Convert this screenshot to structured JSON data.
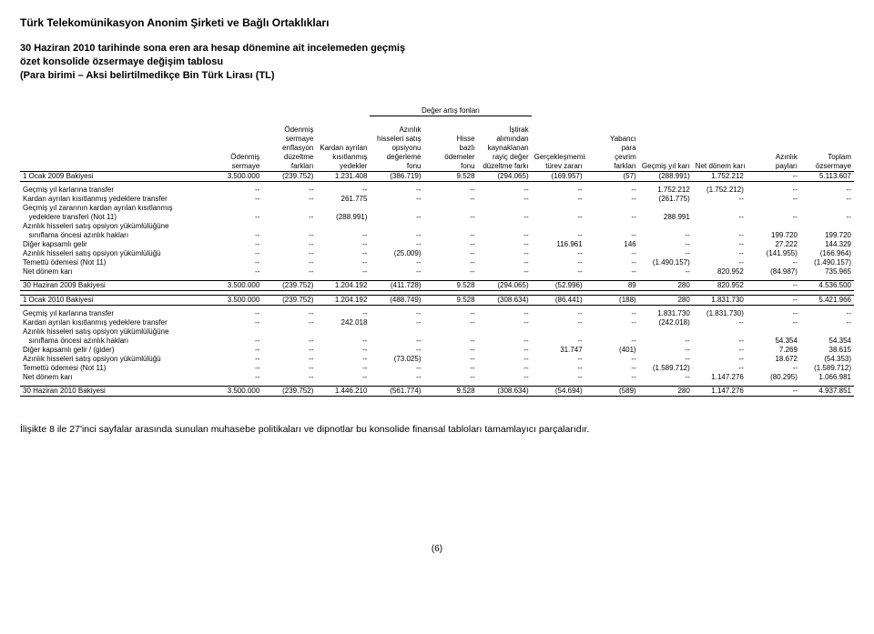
{
  "header": {
    "company": "Türk Telekomünikasyon Anonim Şirketi ve Bağlı Ortaklıkları",
    "line1": "30 Haziran 2010 tarihinde sona eren ara hesap dönemine ait incelemeden geçmiş",
    "line2": "özet konsolide özsermaye değişim tablosu",
    "line3": "(Para birimi – Aksi belirtilmedikçe Bin Türk Lirası (TL)"
  },
  "superheader": "Değer artış fonları",
  "columns": [
    "Ödenmiş sermaye",
    "Ödenmiş sermaye enflasyon düzeltme farkları",
    "Kardan ayrılan kısıtlanmış yedekler",
    "Azınlık hisseleri satış opsiyonu değerleme fonu",
    "Hisse bazlı ödemeler fonu",
    "İştirak alımından kaynaklanan rayiç değer düzeltme farkı",
    "Gerçekleşmemiş türev zararı",
    "Yabancı para çevrim farkları",
    "Geçmiş yıl karı",
    "Net dönem karı",
    "Azınlık payları",
    "Toplam özsermaye"
  ],
  "col_lines": {
    "c0": [
      "",
      "",
      "",
      "Ödenmiş",
      "sermaye"
    ],
    "c1": [
      "Ödenmiş",
      "sermaye",
      "enflasyon",
      "düzeltme",
      "farkları"
    ],
    "c2": [
      "",
      "",
      "Kardan ayrılan",
      "kısıtlanmış",
      "yedekler"
    ],
    "c3": [
      "Azınlık",
      "hisseleri satış",
      "opsiyonu",
      "değerleme",
      "fonu"
    ],
    "c4": [
      "",
      "",
      "Hisse",
      "bazlı",
      "ödemeler",
      "fonu"
    ],
    "c5": [
      "İştirak",
      "alımından",
      "kaynaklanan",
      "rayiç değer",
      "düzeltme farkı"
    ],
    "c6": [
      "",
      "",
      "",
      "Gerçekleşmemiş",
      "türev zararı"
    ],
    "c7": [
      "",
      "Yabancı",
      "para",
      "çevrim",
      "farkları"
    ],
    "c8": [
      "",
      "",
      "",
      "",
      "Geçmiş yıl karı"
    ],
    "c9": [
      "",
      "",
      "",
      "",
      "Net dönem karı"
    ],
    "c10": [
      "",
      "",
      "",
      "Azınlık",
      "payları"
    ],
    "c11": [
      "",
      "",
      "",
      "Toplam",
      "özsermaye"
    ]
  },
  "sections": [
    {
      "rows": [
        {
          "label": "1 Ocak 2009 Bakiyesi",
          "cells": [
            "3.500.000",
            "(239.752)",
            "1.231.408",
            "(386.719)",
            "9.528",
            "(294.065)",
            "(169.957)",
            "(57)",
            "(288.991)",
            "1.752.212",
            "--",
            "5.113.607"
          ],
          "total": true
        }
      ]
    },
    {
      "rows": [
        {
          "label": "Geçmiş yıl karlarına transfer",
          "cells": [
            "--",
            "--",
            "--",
            "--",
            "--",
            "--",
            "--",
            "--",
            "1.752.212",
            "(1.752.212)",
            "--",
            "--"
          ]
        },
        {
          "label": "Kardan ayrılan kısıtlanmış yedeklere transfer",
          "cells": [
            "--",
            "--",
            "261.775",
            "--",
            "--",
            "--",
            "--",
            "--",
            "(261.775)",
            "--",
            "--",
            "--"
          ]
        },
        {
          "label": "Geçmiş yıl zararının kardan ayrılan kısıtlanmış",
          "cells": [
            "",
            "",
            "",
            "",
            "",
            "",
            "",
            "",
            "",
            "",
            "",
            ""
          ]
        },
        {
          "label": "   yedeklere transferi (Not 11)",
          "cells": [
            "--",
            "--",
            "(288.991)",
            "--",
            "--",
            "--",
            "--",
            "--",
            "288.991",
            "--",
            "--",
            "--"
          ]
        },
        {
          "label": "Azınlık hisseleri satış opsiyon yükümlülüğüne",
          "cells": [
            "",
            "",
            "",
            "",
            "",
            "",
            "",
            "",
            "",
            "",
            "",
            ""
          ]
        },
        {
          "label": "   sınıflama öncesi azınlık hakları",
          "cells": [
            "--",
            "--",
            "--",
            "--",
            "--",
            "--",
            "--",
            "--",
            "--",
            "--",
            "199.720",
            "199.720"
          ]
        },
        {
          "label": "Diğer kapsamlı gelir",
          "cells": [
            "--",
            "--",
            "--",
            "--",
            "--",
            "--",
            "116.961",
            "146",
            "--",
            "--",
            "27.222",
            "144.329"
          ]
        },
        {
          "label": "Azınlık hisseleri satış opsiyon yükümlülüğü",
          "cells": [
            "--",
            "--",
            "--",
            "(25.009)",
            "--",
            "--",
            "--",
            "--",
            "--",
            "--",
            "(141.955)",
            "(166.964)"
          ]
        },
        {
          "label": "Temettü ödemesi (Not 11)",
          "cells": [
            "--",
            "--",
            "--",
            "--",
            "--",
            "--",
            "--",
            "--",
            "(1.490.157)",
            "--",
            "--",
            "(1.490.157)"
          ]
        },
        {
          "label": "Net dönem karı",
          "cells": [
            "--",
            "--",
            "--",
            "--",
            "--",
            "--",
            "--",
            "--",
            "--",
            "820.952",
            "(84.987)",
            "735.965"
          ]
        }
      ]
    },
    {
      "rows": [
        {
          "label": "30 Haziran 2009 Bakiyesi",
          "cells": [
            "3.500.000",
            "(239.752)",
            "1.204.192",
            "(411.728)",
            "9.528",
            "(294.065)",
            "(52.996)",
            "89",
            "280",
            "820.952",
            "--",
            "4.536.500"
          ],
          "total": true
        }
      ]
    },
    {
      "rows": [
        {
          "label": "1 Ocak 2010 Bakiyesi",
          "cells": [
            "3.500.000",
            "(239.752)",
            "1.204.192",
            "(488.749)",
            "9.528",
            "(308.634)",
            "(86.441)",
            "(188)",
            "280",
            "1.831.730",
            "--",
            "5.421.966"
          ],
          "total": true
        }
      ]
    },
    {
      "rows": [
        {
          "label": "Geçmiş yıl karlarına transfer",
          "cells": [
            "--",
            "--",
            "--",
            "--",
            "--",
            "--",
            "--",
            "--",
            "1.831.730",
            "(1.831.730)",
            "--",
            "--"
          ]
        },
        {
          "label": "Kardan ayrılan kısıtlanmış yedeklere transfer",
          "cells": [
            "--",
            "--",
            "242.018",
            "--",
            "--",
            "--",
            "--",
            "--",
            "(242.018)",
            "--",
            "--",
            "--"
          ]
        },
        {
          "label": "Azınlık hisseleri satış opsiyon yükümlülüğüne",
          "cells": [
            "",
            "",
            "",
            "",
            "",
            "",
            "",
            "",
            "",
            "",
            "",
            ""
          ]
        },
        {
          "label": "   sınıflama öncesi azınlık hakları",
          "cells": [
            "--",
            "--",
            "--",
            "--",
            "--",
            "--",
            "--",
            "--",
            "--",
            "--",
            "54.354",
            "54.354"
          ]
        },
        {
          "label": "Diğer kapsamlı gelir / (gider)",
          "cells": [
            "--",
            "--",
            "--",
            "--",
            "--",
            "--",
            "31.747",
            "(401)",
            "--",
            "--",
            "7.269",
            "38.615"
          ]
        },
        {
          "label": "Azınlık hisseleri satış opsiyon yükümlülüğü",
          "cells": [
            "--",
            "--",
            "--",
            "(73.025)",
            "--",
            "--",
            "--",
            "--",
            "--",
            "--",
            "18.672",
            "(54.353)"
          ]
        },
        {
          "label": "Temettü ödemesi (Not 11)",
          "cells": [
            "--",
            "--",
            "--",
            "--",
            "--",
            "--",
            "--",
            "--",
            "(1.589.712)",
            "--",
            "--",
            "(1.589.712)"
          ]
        },
        {
          "label": "Net dönem karı",
          "cells": [
            "--",
            "--",
            "--",
            "--",
            "--",
            "--",
            "--",
            "--",
            "--",
            "1.147.276",
            "(80.295)",
            "1.066.981"
          ]
        }
      ]
    },
    {
      "rows": [
        {
          "label": "30 Haziran 2010 Bakiyesi",
          "cells": [
            "3.500.000",
            "(239.752)",
            "1.446.210",
            "(561.774)",
            "9.528",
            "(308.634)",
            "(54.694)",
            "(589)",
            "280",
            "1.147.276",
            "--",
            "4.937.851"
          ],
          "total": true
        }
      ]
    }
  ],
  "footnote": "İlişikte 8 ile 27'inci sayfalar arasında sunulan muhasebe politikaları ve dipnotlar bu konsolide finansal tabloları tamamlayıcı parçalarıdır.",
  "page": "(6)"
}
